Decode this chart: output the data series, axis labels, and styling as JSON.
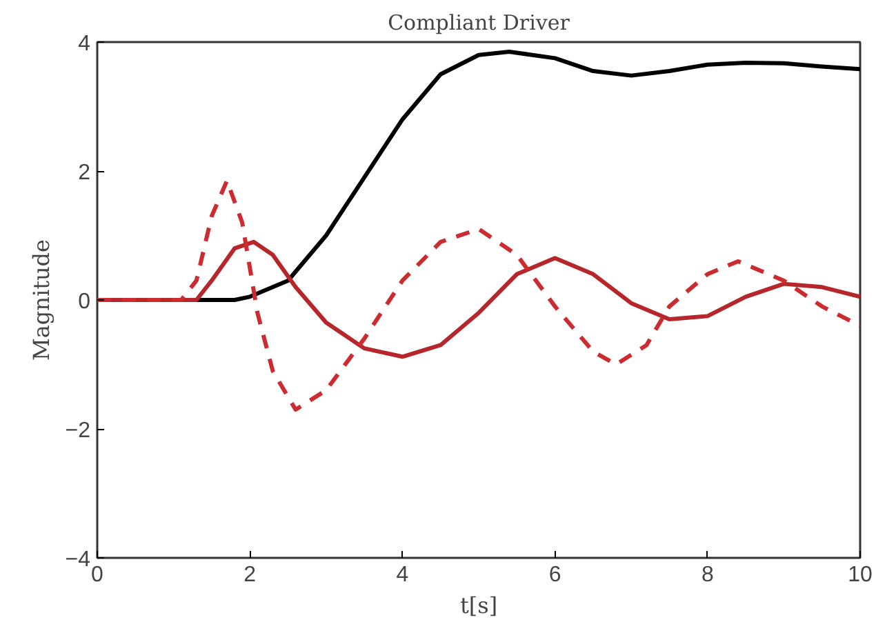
{
  "chart_data": {
    "type": "line",
    "title": "Compliant Driver",
    "xlabel": "t[s]",
    "ylabel": "Magnitude",
    "xlim": [
      0,
      10
    ],
    "ylim": [
      -4,
      4
    ],
    "xticks": [
      0,
      2,
      4,
      6,
      8,
      10
    ],
    "yticks": [
      -4,
      -2,
      0,
      2,
      4
    ],
    "grid": false,
    "series": [
      {
        "color": "#000000",
        "line_style": "solid",
        "x": [
          0,
          1,
          1.8,
          2,
          2.5,
          3,
          3.5,
          4,
          4.5,
          5,
          5.4,
          6,
          6.5,
          7,
          7.5,
          8,
          8.5,
          9,
          9.5,
          10
        ],
        "values": [
          0,
          0,
          0,
          0.05,
          0.3,
          1.0,
          1.9,
          2.8,
          3.5,
          3.8,
          3.85,
          3.75,
          3.55,
          3.48,
          3.55,
          3.65,
          3.68,
          3.67,
          3.62,
          3.58
        ]
      },
      {
        "color": "#b5272a",
        "line_style": "solid",
        "x": [
          0,
          1,
          1.3,
          1.5,
          1.8,
          2.05,
          2.3,
          2.6,
          3,
          3.5,
          4,
          4.5,
          5,
          5.5,
          6,
          6.5,
          7,
          7.5,
          8,
          8.5,
          9,
          9.5,
          10
        ],
        "values": [
          0,
          0,
          0,
          0.3,
          0.8,
          0.9,
          0.7,
          0.2,
          -0.35,
          -0.75,
          -0.88,
          -0.7,
          -0.2,
          0.4,
          0.65,
          0.4,
          -0.05,
          -0.3,
          -0.25,
          0.05,
          0.25,
          0.2,
          0.05
        ]
      },
      {
        "color": "#cc2b30",
        "line_style": "dashed",
        "x": [
          0,
          1,
          1.1,
          1.3,
          1.5,
          1.7,
          1.9,
          2.1,
          2.3,
          2.6,
          3,
          3.5,
          4,
          4.5,
          5,
          5.5,
          6,
          6.5,
          6.8,
          7.2,
          7.5,
          8,
          8.4,
          9,
          9.5,
          10
        ],
        "values": [
          0,
          0,
          0,
          0.3,
          1.3,
          1.85,
          1.2,
          -0.2,
          -1.1,
          -1.7,
          -1.4,
          -0.6,
          0.3,
          0.9,
          1.1,
          0.7,
          -0.1,
          -0.8,
          -1.0,
          -0.7,
          -0.1,
          0.4,
          0.6,
          0.3,
          -0.1,
          -0.4
        ]
      }
    ]
  }
}
